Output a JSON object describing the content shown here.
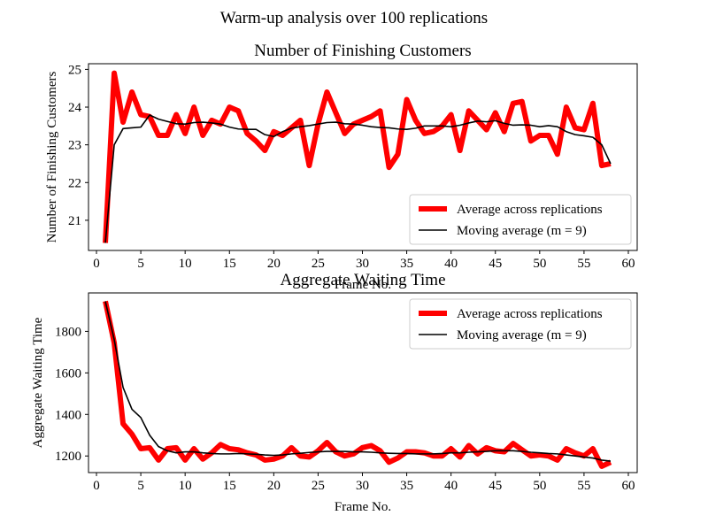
{
  "figure": {
    "suptitle": "Warm-up analysis over 100 replications"
  },
  "chart_data": [
    {
      "type": "line",
      "title": "Number of Finishing Customers",
      "xlabel": "Frame No.",
      "ylabel": "Number of Finishing Customers",
      "xlim": [
        -0.9,
        61.0
      ],
      "ylim": [
        20.2,
        25.15
      ],
      "xticks": [
        0,
        5,
        10,
        15,
        20,
        25,
        30,
        35,
        40,
        45,
        50,
        55,
        60
      ],
      "yticks": [
        21,
        22,
        23,
        24,
        25
      ],
      "legend_position": "lower-right",
      "grid": false,
      "series": [
        {
          "name": "Average across replications",
          "color": "#ff0000",
          "x": [
            1,
            2,
            3,
            4,
            5,
            6,
            7,
            8,
            9,
            10,
            11,
            12,
            13,
            14,
            15,
            16,
            17,
            18,
            19,
            20,
            21,
            22,
            23,
            24,
            25,
            26,
            27,
            28,
            29,
            30,
            31,
            32,
            33,
            34,
            35,
            36,
            37,
            38,
            39,
            40,
            41,
            42,
            43,
            44,
            45,
            46,
            47,
            48,
            49,
            50,
            51,
            52,
            53,
            54,
            55,
            56,
            57,
            58
          ],
          "values": [
            20.4,
            24.9,
            23.6,
            24.4,
            23.8,
            23.75,
            23.25,
            23.25,
            23.8,
            23.3,
            24.0,
            23.25,
            23.65,
            23.55,
            24.0,
            23.9,
            23.3,
            23.1,
            22.85,
            23.35,
            23.25,
            23.45,
            23.65,
            22.45,
            23.55,
            24.4,
            23.85,
            23.3,
            23.55,
            23.65,
            23.75,
            23.9,
            22.4,
            22.75,
            24.2,
            23.65,
            23.3,
            23.35,
            23.5,
            23.8,
            22.85,
            23.9,
            23.65,
            23.4,
            23.85,
            23.35,
            24.1,
            24.15,
            23.1,
            23.25,
            23.25,
            22.75,
            24.0,
            23.45,
            23.4,
            24.1,
            22.45,
            22.5
          ]
        },
        {
          "name": "Moving average (m = 9)",
          "color": "#000000",
          "x": [
            1,
            2,
            3,
            4,
            5,
            6,
            7,
            8,
            9,
            10,
            11,
            12,
            13,
            14,
            15,
            16,
            17,
            18,
            19,
            20,
            21,
            22,
            23,
            24,
            25,
            26,
            27,
            28,
            29,
            30,
            31,
            32,
            33,
            34,
            35,
            36,
            37,
            38,
            39,
            40,
            41,
            42,
            43,
            44,
            45,
            46,
            47,
            48,
            49,
            50,
            51,
            52,
            53,
            54,
            55,
            56,
            57,
            58
          ],
          "values": [
            20.4,
            23.0,
            23.43,
            23.45,
            23.47,
            23.79,
            23.68,
            23.62,
            23.56,
            23.55,
            23.59,
            23.6,
            23.58,
            23.55,
            23.47,
            23.42,
            23.41,
            23.41,
            23.27,
            23.22,
            23.35,
            23.44,
            23.48,
            23.51,
            23.55,
            23.59,
            23.6,
            23.56,
            23.55,
            23.52,
            23.48,
            23.46,
            23.45,
            23.42,
            23.41,
            23.44,
            23.5,
            23.5,
            23.5,
            23.48,
            23.52,
            23.58,
            23.63,
            23.61,
            23.64,
            23.57,
            23.52,
            23.53,
            23.52,
            23.48,
            23.51,
            23.48,
            23.35,
            23.27,
            23.24,
            23.2,
            23.0,
            22.5
          ]
        }
      ]
    },
    {
      "type": "line",
      "title": "Aggregate Waiting Time",
      "xlabel": "Frame No.",
      "ylabel": "Aggregate Waiting Time",
      "xlim": [
        -0.9,
        61.0
      ],
      "ylim": [
        1120,
        1985
      ],
      "xticks": [
        0,
        5,
        10,
        15,
        20,
        25,
        30,
        35,
        40,
        45,
        50,
        55,
        60
      ],
      "yticks": [
        1200,
        1400,
        1600,
        1800
      ],
      "legend_position": "upper-right",
      "grid": false,
      "series": [
        {
          "name": "Average across replications",
          "color": "#ff0000",
          "x": [
            1,
            2,
            3,
            4,
            5,
            6,
            7,
            8,
            9,
            10,
            11,
            12,
            13,
            14,
            15,
            16,
            17,
            18,
            19,
            20,
            21,
            22,
            23,
            24,
            25,
            26,
            27,
            28,
            29,
            30,
            31,
            32,
            33,
            34,
            35,
            36,
            37,
            38,
            39,
            40,
            41,
            42,
            43,
            44,
            45,
            46,
            47,
            48,
            49,
            50,
            51,
            52,
            53,
            54,
            55,
            56,
            57,
            58
          ],
          "values": [
            1945,
            1745,
            1355,
            1305,
            1235,
            1240,
            1180,
            1235,
            1240,
            1180,
            1235,
            1185,
            1215,
            1255,
            1235,
            1230,
            1215,
            1205,
            1180,
            1185,
            1200,
            1240,
            1200,
            1195,
            1225,
            1265,
            1220,
            1200,
            1210,
            1240,
            1250,
            1225,
            1170,
            1190,
            1220,
            1220,
            1215,
            1200,
            1200,
            1235,
            1195,
            1250,
            1210,
            1240,
            1225,
            1220,
            1260,
            1230,
            1200,
            1205,
            1200,
            1180,
            1235,
            1215,
            1200,
            1235,
            1150,
            1170
          ]
        },
        {
          "name": "Moving average (m = 9)",
          "color": "#000000",
          "x": [
            1,
            2,
            3,
            4,
            5,
            6,
            7,
            8,
            9,
            10,
            11,
            12,
            13,
            14,
            15,
            16,
            17,
            18,
            19,
            20,
            21,
            22,
            23,
            24,
            25,
            26,
            27,
            28,
            29,
            30,
            31,
            32,
            33,
            34,
            35,
            36,
            37,
            38,
            39,
            40,
            41,
            42,
            43,
            44,
            45,
            46,
            47,
            48,
            49,
            50,
            51,
            52,
            53,
            54,
            55,
            56,
            57,
            58
          ],
          "values": [
            1945,
            1760,
            1530,
            1425,
            1385,
            1300,
            1245,
            1225,
            1215,
            1220,
            1220,
            1215,
            1212,
            1210,
            1210,
            1212,
            1210,
            1208,
            1205,
            1203,
            1205,
            1210,
            1213,
            1217,
            1220,
            1222,
            1222,
            1222,
            1220,
            1220,
            1218,
            1215,
            1213,
            1212,
            1212,
            1210,
            1210,
            1210,
            1212,
            1215,
            1215,
            1218,
            1220,
            1222,
            1225,
            1225,
            1225,
            1222,
            1218,
            1215,
            1212,
            1210,
            1205,
            1200,
            1195,
            1190,
            1180,
            1175
          ]
        }
      ]
    }
  ]
}
